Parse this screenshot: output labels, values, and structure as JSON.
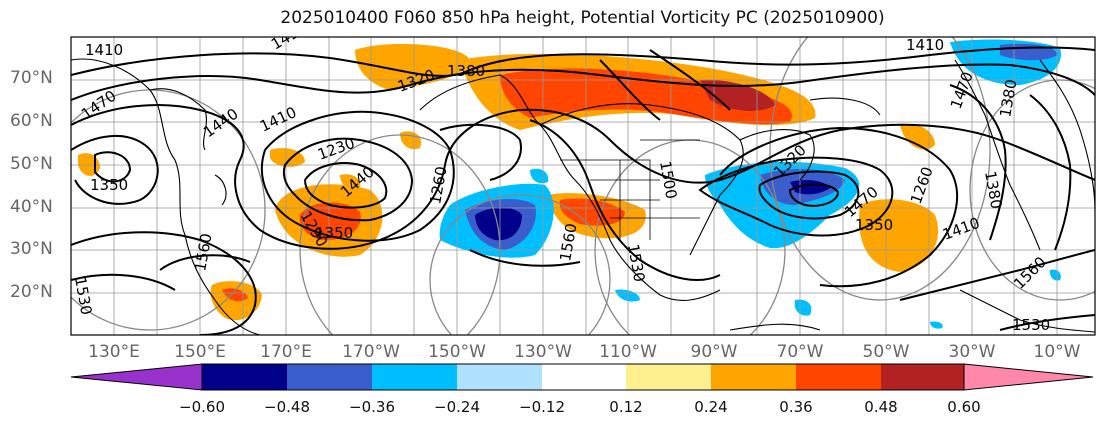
{
  "title": "2025010400 F060 850 hPa height, Potential Vorticity PC (2025010900)",
  "lat_labels": [
    "70°N",
    "60°N",
    "50°N",
    "40°N",
    "30°N",
    "20°N"
  ],
  "lon_labels": [
    "130°E",
    "150°E",
    "170°E",
    "170°W",
    "150°W",
    "130°W",
    "110°W",
    "90°W",
    "70°W",
    "50°W",
    "30°W",
    "10°W"
  ],
  "contour_labels": [
    "1410",
    "1410",
    "1470",
    "1380",
    "1320",
    "1440",
    "1410",
    "1230",
    "1350",
    "1290",
    "1350",
    "1440",
    "1560",
    "1260",
    "1560",
    "1530",
    "1530",
    "1500",
    "1320",
    "1470",
    "1410",
    "1350",
    "1380",
    "1260",
    "1410",
    "1470",
    "1380",
    "1560",
    "1530"
  ],
  "colorbar": {
    "labels": [
      "−0.60",
      "−0.48",
      "−0.36",
      "−0.24",
      "−0.12",
      "0.12",
      "0.24",
      "0.36",
      "0.48",
      "0.60"
    ],
    "colors": [
      "#9932cc",
      "#00008b",
      "#3a5fcd",
      "#00bfff",
      "#b0e2ff",
      "#ffffff",
      "#fff08f",
      "#ffa500",
      "#ff4500",
      "#b22222",
      "#ff88aa"
    ]
  }
}
